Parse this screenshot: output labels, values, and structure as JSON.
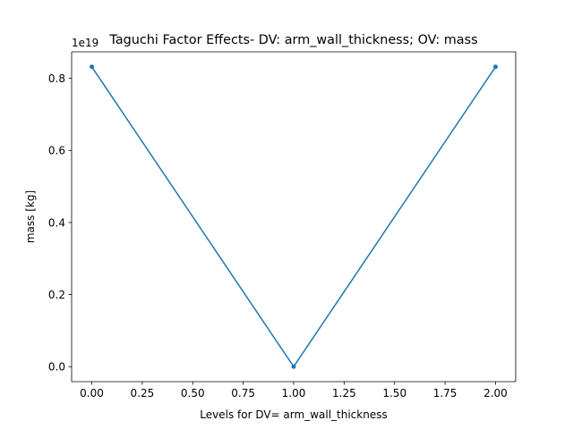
{
  "chart_data": {
    "type": "line",
    "title": "Taguchi Factor Effects- DV: arm_wall_thickness; OV: mass",
    "xlabel": "Levels for DV= arm_wall_thickness",
    "ylabel": "mass [kg]",
    "y_scale_label": "1e19",
    "x": [
      0,
      1,
      2
    ],
    "series": [
      {
        "values": [
          0.832,
          0.0,
          0.832
        ]
      }
    ],
    "xlim": [
      -0.1,
      2.1
    ],
    "ylim": [
      -0.0416,
      0.8736
    ],
    "xticks": [
      0.0,
      0.25,
      0.5,
      0.75,
      1.0,
      1.25,
      1.5,
      1.75,
      2.0
    ],
    "xtick_labels": [
      "0.00",
      "0.25",
      "0.50",
      "0.75",
      "1.00",
      "1.25",
      "1.50",
      "1.75",
      "2.00"
    ],
    "yticks": [
      0.0,
      0.2,
      0.4,
      0.6,
      0.8
    ],
    "ytick_labels": [
      "0.0",
      "0.2",
      "0.4",
      "0.6",
      "0.8"
    ],
    "grid": false,
    "line_color": "#1f77b4",
    "marker": "point"
  }
}
